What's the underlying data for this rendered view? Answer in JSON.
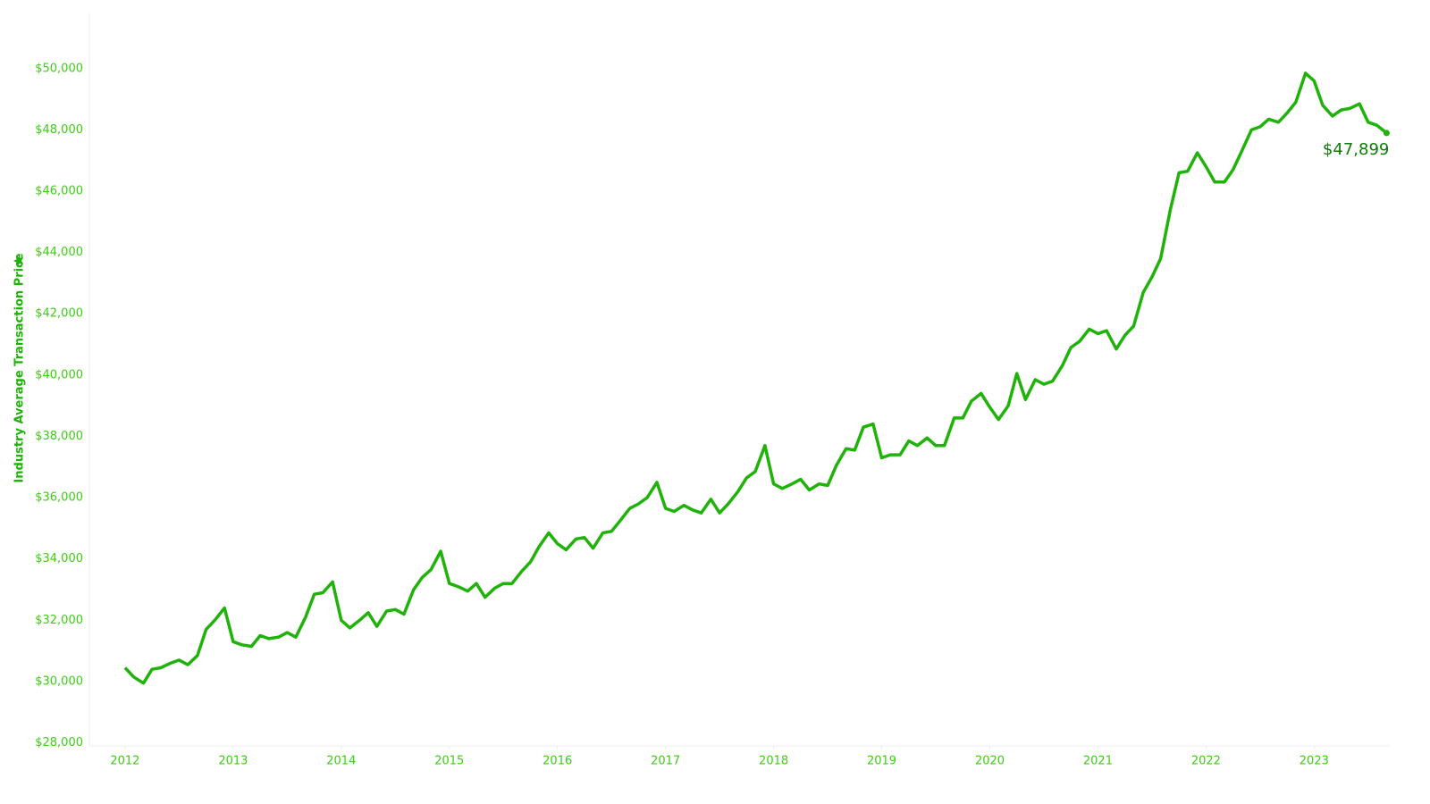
{
  "chart_data": {
    "type": "line",
    "y_label": "Industry Average Transaction Price",
    "color": "#1fb30a",
    "x": [
      2012.0,
      2012.08,
      2012.17,
      2012.25,
      2012.33,
      2012.42,
      2012.5,
      2012.58,
      2012.67,
      2012.75,
      2012.83,
      2012.92,
      2013.0,
      2013.08,
      2013.17,
      2013.25,
      2013.33,
      2013.42,
      2013.5,
      2013.58,
      2013.67,
      2013.75,
      2013.83,
      2013.92,
      2014.0,
      2014.08,
      2014.17,
      2014.25,
      2014.33,
      2014.42,
      2014.5,
      2014.58,
      2014.67,
      2014.75,
      2014.83,
      2014.92,
      2015.0,
      2015.08,
      2015.17,
      2015.25,
      2015.33,
      2015.42,
      2015.5,
      2015.58,
      2015.67,
      2015.75,
      2015.83,
      2015.92,
      2016.0,
      2016.08,
      2016.17,
      2016.25,
      2016.33,
      2016.42,
      2016.5,
      2016.58,
      2016.67,
      2016.75,
      2016.83,
      2016.92,
      2017.0,
      2017.08,
      2017.17,
      2017.25,
      2017.33,
      2017.42,
      2017.5,
      2017.58,
      2017.67,
      2017.75,
      2017.83,
      2017.92,
      2018.0,
      2018.08,
      2018.17,
      2018.25,
      2018.33,
      2018.42,
      2018.5,
      2018.58,
      2018.67,
      2018.75,
      2018.83,
      2018.92,
      2019.0,
      2019.08,
      2019.17,
      2019.25,
      2019.33,
      2019.42,
      2019.5,
      2019.58,
      2019.67,
      2019.75,
      2019.83,
      2019.92,
      2020.0,
      2020.08,
      2020.17,
      2020.25,
      2020.33,
      2020.42,
      2020.5,
      2020.58,
      2020.67,
      2020.75,
      2020.83,
      2020.92,
      2021.0,
      2021.08,
      2021.17,
      2021.25,
      2021.33,
      2021.42,
      2021.5,
      2021.58,
      2021.67,
      2021.75,
      2021.83,
      2021.92,
      2022.0,
      2022.08,
      2022.17,
      2022.25,
      2022.33,
      2022.42,
      2022.5,
      2022.58,
      2022.67,
      2022.75,
      2022.83,
      2022.92,
      2023.0,
      2023.08,
      2023.17,
      2023.25,
      2023.33,
      2023.42,
      2023.5,
      2023.58,
      2023.67
    ],
    "values": [
      30450,
      30150,
      29950,
      30400,
      30450,
      30600,
      30700,
      30550,
      30850,
      31700,
      32000,
      32400,
      31300,
      31200,
      31150,
      31500,
      31400,
      31450,
      31600,
      31450,
      32100,
      32850,
      32900,
      33250,
      32000,
      31750,
      32000,
      32250,
      31800,
      32300,
      32350,
      32200,
      33000,
      33400,
      33650,
      34250,
      33200,
      33100,
      32950,
      33200,
      32750,
      33050,
      33200,
      33200,
      33600,
      33900,
      34400,
      34850,
      34500,
      34300,
      34650,
      34700,
      34350,
      34850,
      34900,
      35250,
      35650,
      35800,
      36000,
      36500,
      35650,
      35550,
      35750,
      35600,
      35500,
      35950,
      35500,
      35800,
      36200,
      36650,
      36850,
      37700,
      36450,
      36300,
      36450,
      36600,
      36250,
      36450,
      36400,
      37050,
      37600,
      37550,
      38300,
      38400,
      37300,
      37400,
      37400,
      37850,
      37700,
      37950,
      37700,
      37700,
      38600,
      38600,
      39150,
      39400,
      38950,
      38550,
      39000,
      40050,
      39200,
      39850,
      39700,
      39800,
      40300,
      40900,
      41100,
      41500,
      41350,
      41450,
      40850,
      41300,
      41600,
      42700,
      43200,
      43800,
      45400,
      46600,
      46650,
      47250,
      46800,
      46300,
      46300,
      46700,
      47300,
      48000,
      48100,
      48350,
      48250,
      48550,
      48900,
      49850,
      49600,
      48800,
      48450,
      48650,
      48700,
      48850,
      48250,
      48150,
      47899
    ],
    "value_labels": [
      null,
      null,
      null,
      null,
      null,
      null,
      null,
      null,
      null,
      null,
      null,
      null,
      null,
      null,
      null,
      null,
      null,
      null,
      null,
      null,
      null,
      null,
      null,
      null,
      null,
      null,
      null,
      null,
      null,
      null,
      null,
      null,
      null,
      null,
      null,
      null,
      null,
      null,
      null,
      null,
      null,
      null,
      null,
      null,
      null,
      null,
      null,
      null,
      null,
      null,
      null,
      null,
      null,
      null,
      null,
      null,
      null,
      null,
      null,
      null,
      null,
      null,
      null,
      null,
      null,
      null,
      null,
      null,
      null,
      null,
      null,
      null,
      null,
      null,
      null,
      null,
      null,
      null,
      null,
      null,
      null,
      null,
      null,
      null,
      null,
      null,
      null,
      null,
      null,
      null,
      null,
      null,
      null,
      null,
      null,
      null,
      null,
      null,
      null,
      null,
      null,
      null,
      null,
      null,
      null,
      null,
      null,
      null,
      null,
      null,
      null,
      null,
      null,
      null,
      null,
      null,
      null,
      null,
      null,
      null,
      null,
      null,
      null,
      null,
      null,
      null,
      null,
      null,
      null,
      null,
      null,
      null,
      null,
      null,
      null,
      null,
      null,
      null,
      null,
      null,
      "$47,899"
    ],
    "xlim": [
      2011.67,
      2023.7
    ],
    "xticks": [
      2012,
      2013,
      2014,
      2015,
      2016,
      2017,
      2018,
      2019,
      2020,
      2021,
      2022,
      2023
    ],
    "ylim": [
      27900,
      51800
    ],
    "yticks": [
      {
        "value": 28000,
        "label": "$28,000"
      },
      {
        "value": 30000,
        "label": "$30,000"
      },
      {
        "value": 32000,
        "label": "$32,000"
      },
      {
        "value": 34000,
        "label": "$34,000"
      },
      {
        "value": 36000,
        "label": "$36,000"
      },
      {
        "value": 38000,
        "label": "$38,000"
      },
      {
        "value": 40000,
        "label": "$40,000"
      },
      {
        "value": 42000,
        "label": "$42,000"
      },
      {
        "value": 44000,
        "label": "$44,000"
      },
      {
        "value": 46000,
        "label": "$46,000"
      },
      {
        "value": 48000,
        "label": "$48,000"
      },
      {
        "value": 50000,
        "label": "$50,000"
      }
    ],
    "grid": false
  }
}
